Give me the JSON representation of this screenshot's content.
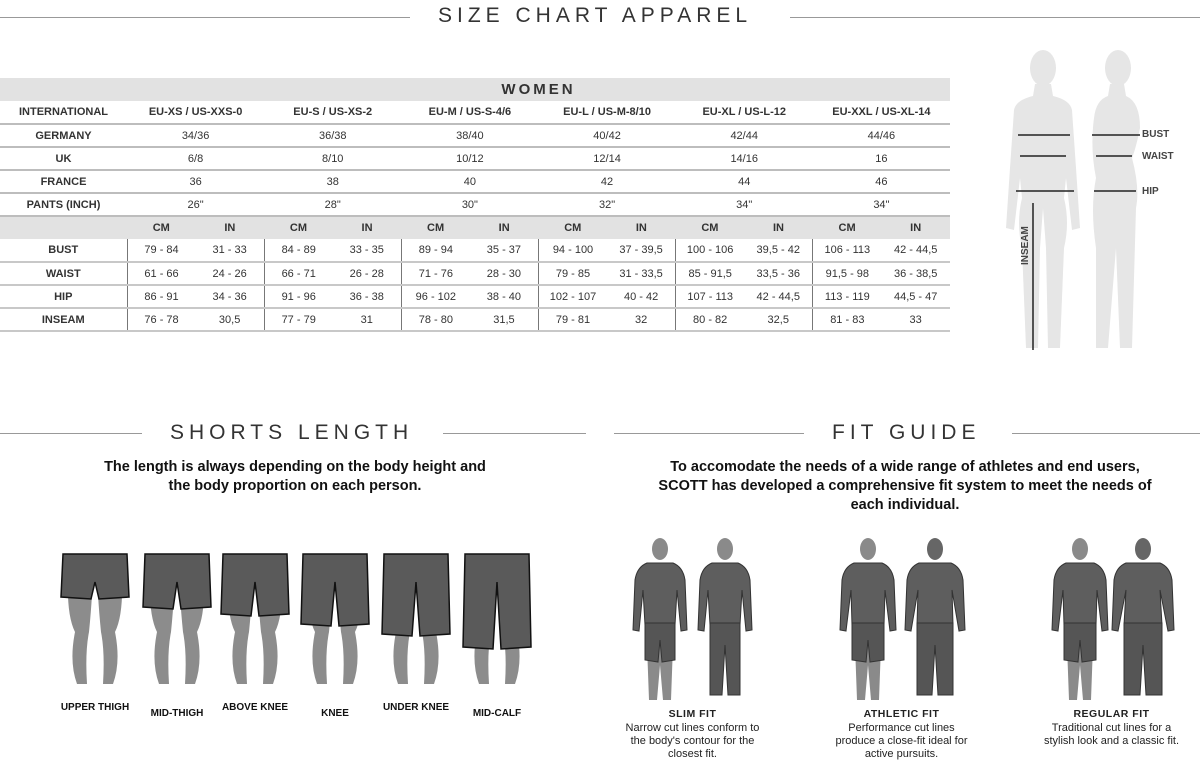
{
  "header": {
    "title": "SIZE CHART APPAREL"
  },
  "size_chart": {
    "group": "WOMEN",
    "international_label": "INTERNATIONAL",
    "sizes": [
      "EU-XS / US-XXS-0",
      "EU-S / US-XS-2",
      "EU-M / US-S-4/6",
      "EU-L / US-M-8/10",
      "EU-XL / US-L-12",
      "EU-XXL / US-XL-14"
    ],
    "conversions": [
      {
        "label": "GERMANY",
        "values": [
          "34/36",
          "36/38",
          "38/40",
          "40/42",
          "42/44",
          "44/46"
        ]
      },
      {
        "label": "UK",
        "values": [
          "6/8",
          "8/10",
          "10/12",
          "12/14",
          "14/16",
          "16"
        ]
      },
      {
        "label": "FRANCE",
        "values": [
          "36",
          "38",
          "40",
          "42",
          "44",
          "46"
        ]
      },
      {
        "label": "PANTS (INCH)",
        "values": [
          "26\"",
          "28\"",
          "30\"",
          "32\"",
          "34\"",
          "34\""
        ]
      }
    ],
    "units": [
      "CM",
      "IN"
    ],
    "measurements": [
      {
        "label": "BUST",
        "values": [
          [
            "79 - 84",
            "31 - 33"
          ],
          [
            "84 - 89",
            "33 - 35"
          ],
          [
            "89 - 94",
            "35 - 37"
          ],
          [
            "94 - 100",
            "37 - 39,5"
          ],
          [
            "100 - 106",
            "39,5 - 42"
          ],
          [
            "106 - 113",
            "42 - 44,5"
          ]
        ]
      },
      {
        "label": "WAIST",
        "values": [
          [
            "61 - 66",
            "24 - 26"
          ],
          [
            "66 - 71",
            "26 - 28"
          ],
          [
            "71 - 76",
            "28 - 30"
          ],
          [
            "79 - 85",
            "31 - 33,5"
          ],
          [
            "85 - 91,5",
            "33,5 - 36"
          ],
          [
            "91,5 - 98",
            "36 - 38,5"
          ]
        ]
      },
      {
        "label": "HIP",
        "values": [
          [
            "86 - 91",
            "34 - 36"
          ],
          [
            "91 - 96",
            "36 - 38"
          ],
          [
            "96 - 102",
            "38 - 40"
          ],
          [
            "102 - 107",
            "40 - 42"
          ],
          [
            "107 - 113",
            "42 - 44,5"
          ],
          [
            "113 - 119",
            "44,5 - 47"
          ]
        ]
      },
      {
        "label": "INSEAM",
        "values": [
          [
            "76 - 78",
            "30,5"
          ],
          [
            "77 - 79",
            "31"
          ],
          [
            "78 - 80",
            "31,5"
          ],
          [
            "79 - 81",
            "32"
          ],
          [
            "80 - 82",
            "32,5"
          ],
          [
            "81 - 83",
            "33"
          ]
        ]
      }
    ]
  },
  "body_diagram": {
    "labels": {
      "bust": "BUST",
      "waist": "WAIST",
      "hip": "HIP",
      "inseam": "INSEAM"
    },
    "figure_color": "#e6e6e6"
  },
  "shorts_length": {
    "title": "SHORTS LENGTH",
    "intro": "The length is always depending on the body height and the body proportion on each person.",
    "items": [
      {
        "label": "UPPER THIGH"
      },
      {
        "label": "MID-THIGH"
      },
      {
        "label": "ABOVE KNEE"
      },
      {
        "label": "KNEE"
      },
      {
        "label": "UNDER KNEE"
      },
      {
        "label": "MID-CALF"
      }
    ],
    "shorts_color": "#5a5a5a",
    "leg_color": "#8c8c8c"
  },
  "fit_guide": {
    "title": "FIT GUIDE",
    "intro": "To accomodate the needs of a wide range of athletes and end users, SCOTT has developed a comprehensive fit system to meet the needs of each individual.",
    "items": [
      {
        "name": "SLIM FIT",
        "description": "Narrow cut lines conform to the body's contour for the closest fit."
      },
      {
        "name": "ATHLETIC FIT",
        "description": "Performance cut lines produce a close-fit ideal for active pursuits."
      },
      {
        "name": "REGULAR FIT",
        "description": "Traditional cut lines for a stylish look and a classic fit."
      }
    ]
  }
}
